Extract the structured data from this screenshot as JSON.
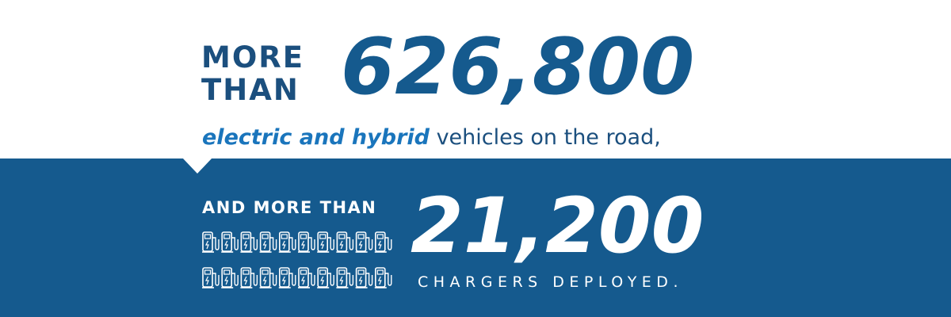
{
  "top": {
    "lead_lines": [
      "MORE",
      "THAN"
    ],
    "number": "626,800",
    "highlight": "electric and hybrid",
    "rest": "vehicles on the road,"
  },
  "bottom": {
    "lead": "AND MORE THAN",
    "number": "21,200",
    "caption": "CHARGERS DEPLOYED."
  }
}
